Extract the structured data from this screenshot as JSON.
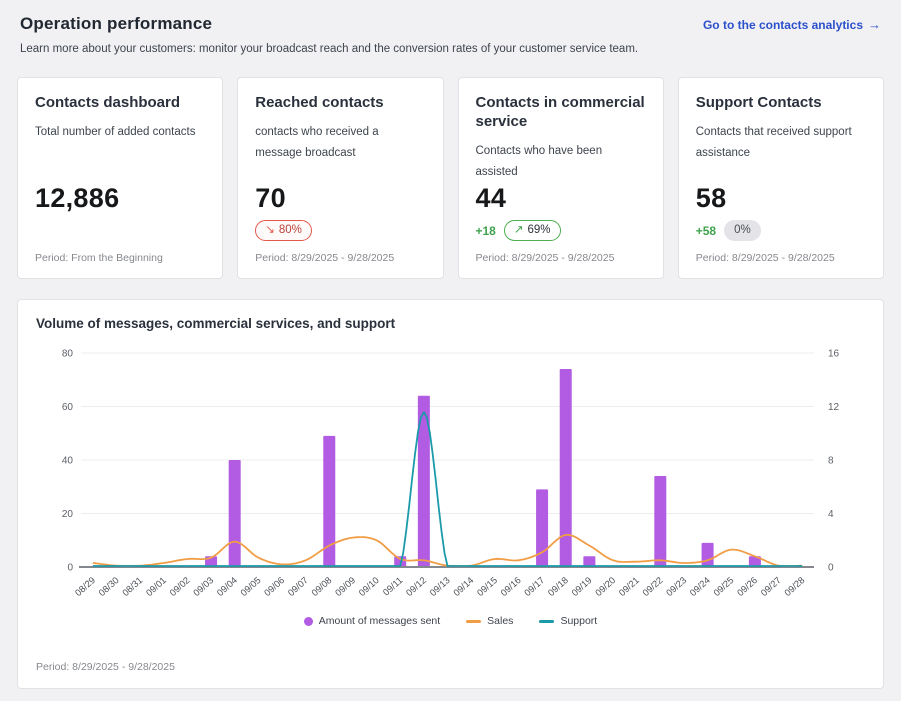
{
  "header": {
    "title": "Operation performance",
    "subtitle": "Learn more about your customers: monitor your broadcast reach and the conversion rates of your customer service team.",
    "link_label": "Go to the contacts analytics",
    "link_arrow": "→",
    "link_color": "#2c50cb"
  },
  "cards": [
    {
      "title": "Contacts dashboard",
      "description": "Total number of added contacts",
      "value": "12,886",
      "period": "Period: From the Beginning"
    },
    {
      "title": "Reached contacts",
      "description": "contacts who received a message broadcast",
      "value": "70",
      "badge": {
        "type": "negative",
        "arrow": "↘",
        "label": "80%",
        "color": "#e2594b"
      },
      "period": "Period: 8/29/2025 - 9/28/2025"
    },
    {
      "title": "Contacts in commercial service",
      "description": "Contacts who have been assisted",
      "value": "44",
      "delta": "+18",
      "badge": {
        "type": "positive",
        "arrow": "↗",
        "label": "69%",
        "color": "#4caf50"
      },
      "period": "Period: 8/29/2025 - 9/28/2025"
    },
    {
      "title": "Support Contacts",
      "description": "Contacts that received support assistance",
      "value": "58",
      "delta": "+58",
      "badge": {
        "type": "neutral",
        "arrow": "",
        "label": "0%",
        "color": "#e3e3e8"
      },
      "period": "Period: 8/29/2025 - 9/28/2025"
    }
  ],
  "chart_card": {
    "title": "Volume of messages, commercial services, and support",
    "period": "Period: 8/29/2025 - 9/28/2025"
  },
  "chart_data": {
    "type": "bar",
    "title": "Volume of messages, commercial services, and support",
    "categories": [
      "08/29",
      "08/30",
      "08/31",
      "09/01",
      "09/02",
      "09/03",
      "09/04",
      "09/05",
      "09/06",
      "09/07",
      "09/08",
      "09/09",
      "09/10",
      "09/11",
      "09/12",
      "09/13",
      "09/14",
      "09/15",
      "09/16",
      "09/17",
      "09/18",
      "09/19",
      "09/20",
      "09/21",
      "09/22",
      "09/23",
      "09/24",
      "09/25",
      "09/26",
      "09/27",
      "09/28"
    ],
    "series": [
      {
        "name": "Amount of messages sent",
        "type": "bar",
        "axis": "left",
        "color": "#b15ce2",
        "values": [
          0,
          0,
          0,
          0,
          0,
          4,
          40,
          0,
          0,
          0,
          49,
          0,
          0,
          4,
          64,
          0,
          0,
          0,
          0,
          29,
          74,
          4,
          0,
          0,
          34,
          0,
          9,
          0,
          4,
          0,
          0
        ]
      },
      {
        "name": "Sales",
        "type": "line",
        "axis": "right",
        "color": "#f09d45",
        "values": [
          0.3,
          0.1,
          0.1,
          0.3,
          0.6,
          0.7,
          1.9,
          0.7,
          0.2,
          0.5,
          1.6,
          2.2,
          2.0,
          0.6,
          0.5,
          0.1,
          0.1,
          0.6,
          0.5,
          1.1,
          2.4,
          1.6,
          0.5,
          0.4,
          0.5,
          0.3,
          0.5,
          1.3,
          0.8,
          0.1,
          0.1
        ]
      },
      {
        "name": "Support",
        "type": "line",
        "axis": "right",
        "color": "#1b9aaa",
        "values": [
          0,
          0,
          0,
          0,
          0,
          0,
          0,
          0,
          0,
          0,
          0,
          0,
          0,
          0,
          11.6,
          0,
          0,
          0,
          0,
          0,
          0,
          0,
          0,
          0,
          0,
          0,
          0,
          0,
          0,
          0,
          0
        ]
      }
    ],
    "left_axis": {
      "min": 0,
      "max": 80,
      "ticks": [
        0,
        20,
        40,
        60,
        80
      ]
    },
    "right_axis": {
      "min": 0,
      "max": 16,
      "ticks": [
        0,
        4,
        8,
        12,
        16
      ]
    },
    "grid": true,
    "legend_position": "bottom",
    "xlabel": "",
    "ylabel": ""
  }
}
